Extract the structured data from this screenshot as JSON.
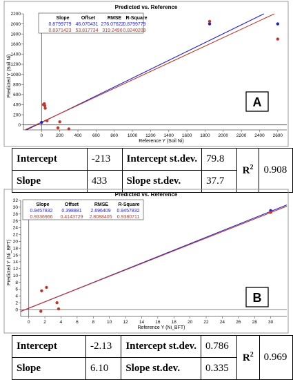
{
  "charts": [
    {
      "title": "Predicted vs. Reference",
      "xlabel": "Reference Y (Soil Ni)",
      "ylabel": "Predicted Y (Soil Ni)",
      "panel_label": "A",
      "stats_header": [
        "Slope",
        "Offset",
        "RMSE",
        "R-Square"
      ],
      "stats_rows": [
        {
          "values": [
            "0.8799779",
            "46.070431",
            "276.07622",
            "0.8799779"
          ],
          "color": "#1f1fcf"
        },
        {
          "values": [
            "0.8371423",
            "53.817734",
            "319.2496",
            "0.8240208"
          ],
          "color": "#c0392b"
        }
      ],
      "table": {
        "intercept_label": "Intercept",
        "intercept": "-213",
        "intercept_sd_label": "Intercept st.dev.",
        "intercept_sd": "79.8",
        "slope_label": "Slope",
        "slope": "433",
        "slope_sd_label": "Slope st.dev.",
        "slope_sd": "37.7",
        "r2_label": "R",
        "r2_sup": "2",
        "r2": "0.908"
      }
    },
    {
      "title": "Predicted vs. Reference",
      "xlabel": "Reference Y (Ni_BFT)",
      "ylabel": "Predicted Y (Ni_BFT)",
      "panel_label": "B",
      "stats_header": [
        "Slope",
        "Offset",
        "RMSE",
        "R-Square"
      ],
      "stats_rows": [
        {
          "values": [
            "0.9457832",
            "0.398881",
            "2.696409",
            "0.9457832"
          ],
          "color": "#1f1fcf"
        },
        {
          "values": [
            "0.9336966",
            "0.4143729",
            "2.8088405",
            "0.9380711"
          ],
          "color": "#c0392b"
        }
      ],
      "table": {
        "intercept_label": "Intercept",
        "intercept": "-2.13",
        "intercept_sd_label": "Intercept st.dev.",
        "intercept_sd": "0.786",
        "slope_label": "Slope",
        "slope": "6.10",
        "slope_sd_label": "Slope st.dev.",
        "slope_sd": "0.335",
        "r2_label": "R",
        "r2_sup": "2",
        "r2": "0.969"
      }
    }
  ],
  "chart_data": [
    {
      "type": "scatter",
      "title": "Predicted vs. Reference",
      "xlabel": "Reference Y (Soil Ni)",
      "ylabel": "Predicted Y (Soil Ni)",
      "xlim": [
        -200,
        2700
      ],
      "ylim": [
        -100,
        2200
      ],
      "xticks": [
        0,
        200,
        400,
        600,
        800,
        1000,
        1200,
        1400,
        1600,
        1800,
        2000,
        2200,
        2400,
        2600
      ],
      "yticks": [
        0,
        200,
        400,
        600,
        800,
        1000,
        1200,
        1400,
        1600,
        1800,
        2000,
        2200
      ],
      "grid": false,
      "series": [
        {
          "color": "#1f1fcf",
          "x": [
            0,
            1850,
            2600
          ],
          "y": [
            50,
            2000,
            2000
          ]
        },
        {
          "color": "#c0392b",
          "x": [
            20,
            30,
            35,
            40,
            60,
            180,
            200,
            300,
            1850,
            2600
          ],
          "y": [
            400,
            420,
            380,
            330,
            80,
            -60,
            60,
            -80,
            2050,
            1700
          ]
        }
      ],
      "fit_lines": [
        {
          "color": "#1f1fcf",
          "slope": 0.8799779,
          "offset": 46.070431
        },
        {
          "color": "#c0392b",
          "slope": 0.8371423,
          "offset": 53.817734
        }
      ]
    },
    {
      "type": "scatter",
      "title": "Predicted vs. Reference",
      "xlabel": "Reference Y (Ni_BFT)",
      "ylabel": "Predicted Y (Ni_BFT)",
      "xlim": [
        -1,
        32
      ],
      "ylim": [
        -2,
        32
      ],
      "xticks": [
        0,
        2,
        4,
        6,
        8,
        10,
        12,
        14,
        16,
        18,
        20,
        22,
        24,
        26,
        28,
        30
      ],
      "yticks": [
        0,
        2,
        4,
        6,
        8,
        10,
        12,
        14,
        16,
        18,
        20,
        22,
        24,
        26,
        28,
        30,
        32
      ],
      "grid": false,
      "series": [
        {
          "color": "#1f1fcf",
          "x": [
            30
          ],
          "y": [
            29
          ]
        },
        {
          "color": "#c0392b",
          "x": [
            1.5,
            1.6,
            2.2,
            3.5,
            3.7,
            30
          ],
          "y": [
            -0.5,
            5.5,
            6.5,
            2.0,
            0.2,
            28.5
          ]
        }
      ],
      "fit_lines": [
        {
          "color": "#1f1fcf",
          "slope": 0.9457832,
          "offset": 0.398881
        },
        {
          "color": "#c0392b",
          "slope": 0.9336966,
          "offset": 0.4143729
        }
      ]
    }
  ]
}
